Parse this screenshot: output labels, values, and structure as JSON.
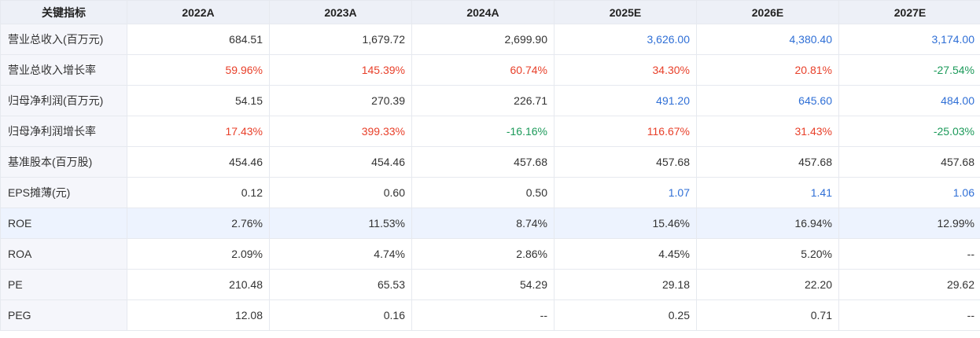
{
  "header": {
    "label": "关键指标",
    "years": [
      "2022A",
      "2023A",
      "2024A",
      "2025E",
      "2026E",
      "2027E"
    ]
  },
  "colors": {
    "black": "#333333",
    "blue": "#2f6fd6",
    "red": "#e8402a",
    "green": "#1c9a5a"
  },
  "rows": [
    {
      "label": "营业总收入(百万元)",
      "values": [
        "684.51",
        "1,679.72",
        "2,699.90",
        "3,626.00",
        "4,380.40",
        "3,174.00"
      ],
      "colors": [
        "black",
        "black",
        "black",
        "blue",
        "blue",
        "blue"
      ]
    },
    {
      "label": "营业总收入增长率",
      "values": [
        "59.96%",
        "145.39%",
        "60.74%",
        "34.30%",
        "20.81%",
        "-27.54%"
      ],
      "colors": [
        "red",
        "red",
        "red",
        "red",
        "red",
        "green"
      ]
    },
    {
      "label": "归母净利润(百万元)",
      "values": [
        "54.15",
        "270.39",
        "226.71",
        "491.20",
        "645.60",
        "484.00"
      ],
      "colors": [
        "black",
        "black",
        "black",
        "blue",
        "blue",
        "blue"
      ]
    },
    {
      "label": "归母净利润增长率",
      "values": [
        "17.43%",
        "399.33%",
        "-16.16%",
        "116.67%",
        "31.43%",
        "-25.03%"
      ],
      "colors": [
        "red",
        "red",
        "green",
        "red",
        "red",
        "green"
      ]
    },
    {
      "label": "基准股本(百万股)",
      "values": [
        "454.46",
        "454.46",
        "457.68",
        "457.68",
        "457.68",
        "457.68"
      ],
      "colors": [
        "black",
        "black",
        "black",
        "black",
        "black",
        "black"
      ]
    },
    {
      "label": "EPS摊薄(元)",
      "values": [
        "0.12",
        "0.60",
        "0.50",
        "1.07",
        "1.41",
        "1.06"
      ],
      "colors": [
        "black",
        "black",
        "black",
        "blue",
        "blue",
        "blue"
      ]
    },
    {
      "label": "ROE",
      "values": [
        "2.76%",
        "11.53%",
        "8.74%",
        "15.46%",
        "16.94%",
        "12.99%"
      ],
      "colors": [
        "black",
        "black",
        "black",
        "black",
        "black",
        "black"
      ],
      "highlight": true
    },
    {
      "label": "ROA",
      "values": [
        "2.09%",
        "4.74%",
        "2.86%",
        "4.45%",
        "5.20%",
        "--"
      ],
      "colors": [
        "black",
        "black",
        "black",
        "black",
        "black",
        "black"
      ]
    },
    {
      "label": "PE",
      "values": [
        "210.48",
        "65.53",
        "54.29",
        "29.18",
        "22.20",
        "29.62"
      ],
      "colors": [
        "black",
        "black",
        "black",
        "black",
        "black",
        "black"
      ]
    },
    {
      "label": "PEG",
      "values": [
        "12.08",
        "0.16",
        "--",
        "0.25",
        "0.71",
        "--"
      ],
      "colors": [
        "black",
        "black",
        "black",
        "black",
        "black",
        "black"
      ]
    }
  ]
}
